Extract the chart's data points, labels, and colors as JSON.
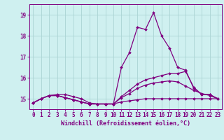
{
  "xlabel": "Windchill (Refroidissement éolien,°C)",
  "background_color": "#cff0f0",
  "grid_color": "#aad4d4",
  "line_color": "#800080",
  "x": [
    0,
    1,
    2,
    3,
    4,
    5,
    6,
    7,
    8,
    9,
    10,
    11,
    12,
    13,
    14,
    15,
    16,
    17,
    18,
    19,
    20,
    21,
    22,
    23
  ],
  "line1": [
    14.8,
    15.0,
    15.15,
    15.2,
    15.2,
    15.1,
    15.0,
    14.8,
    14.75,
    14.75,
    14.75,
    16.5,
    17.2,
    18.4,
    18.3,
    19.1,
    18.0,
    17.4,
    16.5,
    16.35,
    15.5,
    15.2,
    15.2,
    15.0
  ],
  "line2": [
    14.8,
    15.0,
    15.15,
    15.15,
    15.05,
    14.95,
    14.85,
    14.75,
    14.75,
    14.75,
    14.75,
    15.1,
    15.4,
    15.7,
    15.9,
    16.0,
    16.1,
    16.2,
    16.2,
    16.3,
    15.55,
    15.2,
    15.2,
    15.0
  ],
  "line3": [
    14.8,
    15.0,
    15.15,
    15.15,
    15.05,
    14.95,
    14.85,
    14.75,
    14.75,
    14.75,
    14.75,
    15.05,
    15.25,
    15.5,
    15.65,
    15.75,
    15.8,
    15.85,
    15.8,
    15.6,
    15.4,
    15.25,
    15.15,
    15.0
  ],
  "line4": [
    14.8,
    15.0,
    15.15,
    15.15,
    15.05,
    14.95,
    14.85,
    14.75,
    14.75,
    14.75,
    14.75,
    14.85,
    14.9,
    14.95,
    15.0,
    15.0,
    15.0,
    15.0,
    15.0,
    15.0,
    15.0,
    15.0,
    15.0,
    15.0
  ],
  "ylim": [
    14.5,
    19.5
  ],
  "yticks": [
    15,
    16,
    17,
    18,
    19
  ],
  "xticks": [
    0,
    1,
    2,
    3,
    4,
    5,
    6,
    7,
    8,
    9,
    10,
    11,
    12,
    13,
    14,
    15,
    16,
    17,
    18,
    19,
    20,
    21,
    22,
    23
  ],
  "markersize": 2.0,
  "linewidth": 0.9,
  "tick_fontsize": 5.5,
  "xlabel_fontsize": 6.0
}
